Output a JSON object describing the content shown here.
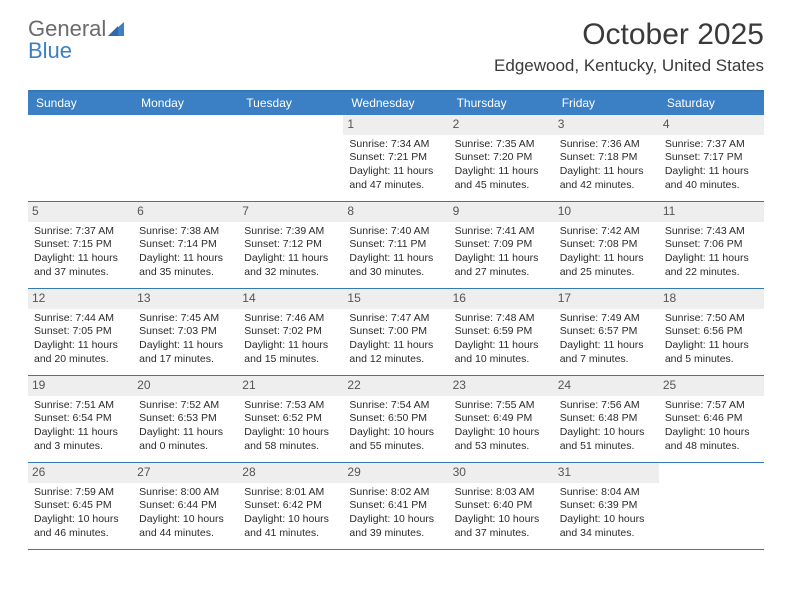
{
  "logo": {
    "line1": "General",
    "line2_prefix": "",
    "line2_blue": "Blue",
    "gray_color": "#6b6b6b",
    "blue_color": "#3b7fc4"
  },
  "header": {
    "month_title": "October 2025",
    "location": "Edgewood, Kentucky, United States"
  },
  "colors": {
    "header_bg": "#3b7fc4",
    "border": "#3678b5",
    "daynum_bg": "#eeeeee",
    "text": "#2b2b2b"
  },
  "day_names": [
    "Sunday",
    "Monday",
    "Tuesday",
    "Wednesday",
    "Thursday",
    "Friday",
    "Saturday"
  ],
  "weeks": [
    [
      {
        "num": "",
        "sunrise": "",
        "sunset": "",
        "daylight": ""
      },
      {
        "num": "",
        "sunrise": "",
        "sunset": "",
        "daylight": ""
      },
      {
        "num": "",
        "sunrise": "",
        "sunset": "",
        "daylight": ""
      },
      {
        "num": "1",
        "sunrise": "Sunrise: 7:34 AM",
        "sunset": "Sunset: 7:21 PM",
        "daylight": "Daylight: 11 hours and 47 minutes."
      },
      {
        "num": "2",
        "sunrise": "Sunrise: 7:35 AM",
        "sunset": "Sunset: 7:20 PM",
        "daylight": "Daylight: 11 hours and 45 minutes."
      },
      {
        "num": "3",
        "sunrise": "Sunrise: 7:36 AM",
        "sunset": "Sunset: 7:18 PM",
        "daylight": "Daylight: 11 hours and 42 minutes."
      },
      {
        "num": "4",
        "sunrise": "Sunrise: 7:37 AM",
        "sunset": "Sunset: 7:17 PM",
        "daylight": "Daylight: 11 hours and 40 minutes."
      }
    ],
    [
      {
        "num": "5",
        "sunrise": "Sunrise: 7:37 AM",
        "sunset": "Sunset: 7:15 PM",
        "daylight": "Daylight: 11 hours and 37 minutes."
      },
      {
        "num": "6",
        "sunrise": "Sunrise: 7:38 AM",
        "sunset": "Sunset: 7:14 PM",
        "daylight": "Daylight: 11 hours and 35 minutes."
      },
      {
        "num": "7",
        "sunrise": "Sunrise: 7:39 AM",
        "sunset": "Sunset: 7:12 PM",
        "daylight": "Daylight: 11 hours and 32 minutes."
      },
      {
        "num": "8",
        "sunrise": "Sunrise: 7:40 AM",
        "sunset": "Sunset: 7:11 PM",
        "daylight": "Daylight: 11 hours and 30 minutes."
      },
      {
        "num": "9",
        "sunrise": "Sunrise: 7:41 AM",
        "sunset": "Sunset: 7:09 PM",
        "daylight": "Daylight: 11 hours and 27 minutes."
      },
      {
        "num": "10",
        "sunrise": "Sunrise: 7:42 AM",
        "sunset": "Sunset: 7:08 PM",
        "daylight": "Daylight: 11 hours and 25 minutes."
      },
      {
        "num": "11",
        "sunrise": "Sunrise: 7:43 AM",
        "sunset": "Sunset: 7:06 PM",
        "daylight": "Daylight: 11 hours and 22 minutes."
      }
    ],
    [
      {
        "num": "12",
        "sunrise": "Sunrise: 7:44 AM",
        "sunset": "Sunset: 7:05 PM",
        "daylight": "Daylight: 11 hours and 20 minutes."
      },
      {
        "num": "13",
        "sunrise": "Sunrise: 7:45 AM",
        "sunset": "Sunset: 7:03 PM",
        "daylight": "Daylight: 11 hours and 17 minutes."
      },
      {
        "num": "14",
        "sunrise": "Sunrise: 7:46 AM",
        "sunset": "Sunset: 7:02 PM",
        "daylight": "Daylight: 11 hours and 15 minutes."
      },
      {
        "num": "15",
        "sunrise": "Sunrise: 7:47 AM",
        "sunset": "Sunset: 7:00 PM",
        "daylight": "Daylight: 11 hours and 12 minutes."
      },
      {
        "num": "16",
        "sunrise": "Sunrise: 7:48 AM",
        "sunset": "Sunset: 6:59 PM",
        "daylight": "Daylight: 11 hours and 10 minutes."
      },
      {
        "num": "17",
        "sunrise": "Sunrise: 7:49 AM",
        "sunset": "Sunset: 6:57 PM",
        "daylight": "Daylight: 11 hours and 7 minutes."
      },
      {
        "num": "18",
        "sunrise": "Sunrise: 7:50 AM",
        "sunset": "Sunset: 6:56 PM",
        "daylight": "Daylight: 11 hours and 5 minutes."
      }
    ],
    [
      {
        "num": "19",
        "sunrise": "Sunrise: 7:51 AM",
        "sunset": "Sunset: 6:54 PM",
        "daylight": "Daylight: 11 hours and 3 minutes."
      },
      {
        "num": "20",
        "sunrise": "Sunrise: 7:52 AM",
        "sunset": "Sunset: 6:53 PM",
        "daylight": "Daylight: 11 hours and 0 minutes."
      },
      {
        "num": "21",
        "sunrise": "Sunrise: 7:53 AM",
        "sunset": "Sunset: 6:52 PM",
        "daylight": "Daylight: 10 hours and 58 minutes."
      },
      {
        "num": "22",
        "sunrise": "Sunrise: 7:54 AM",
        "sunset": "Sunset: 6:50 PM",
        "daylight": "Daylight: 10 hours and 55 minutes."
      },
      {
        "num": "23",
        "sunrise": "Sunrise: 7:55 AM",
        "sunset": "Sunset: 6:49 PM",
        "daylight": "Daylight: 10 hours and 53 minutes."
      },
      {
        "num": "24",
        "sunrise": "Sunrise: 7:56 AM",
        "sunset": "Sunset: 6:48 PM",
        "daylight": "Daylight: 10 hours and 51 minutes."
      },
      {
        "num": "25",
        "sunrise": "Sunrise: 7:57 AM",
        "sunset": "Sunset: 6:46 PM",
        "daylight": "Daylight: 10 hours and 48 minutes."
      }
    ],
    [
      {
        "num": "26",
        "sunrise": "Sunrise: 7:59 AM",
        "sunset": "Sunset: 6:45 PM",
        "daylight": "Daylight: 10 hours and 46 minutes."
      },
      {
        "num": "27",
        "sunrise": "Sunrise: 8:00 AM",
        "sunset": "Sunset: 6:44 PM",
        "daylight": "Daylight: 10 hours and 44 minutes."
      },
      {
        "num": "28",
        "sunrise": "Sunrise: 8:01 AM",
        "sunset": "Sunset: 6:42 PM",
        "daylight": "Daylight: 10 hours and 41 minutes."
      },
      {
        "num": "29",
        "sunrise": "Sunrise: 8:02 AM",
        "sunset": "Sunset: 6:41 PM",
        "daylight": "Daylight: 10 hours and 39 minutes."
      },
      {
        "num": "30",
        "sunrise": "Sunrise: 8:03 AM",
        "sunset": "Sunset: 6:40 PM",
        "daylight": "Daylight: 10 hours and 37 minutes."
      },
      {
        "num": "31",
        "sunrise": "Sunrise: 8:04 AM",
        "sunset": "Sunset: 6:39 PM",
        "daylight": "Daylight: 10 hours and 34 minutes."
      },
      {
        "num": "",
        "sunrise": "",
        "sunset": "",
        "daylight": ""
      }
    ]
  ]
}
